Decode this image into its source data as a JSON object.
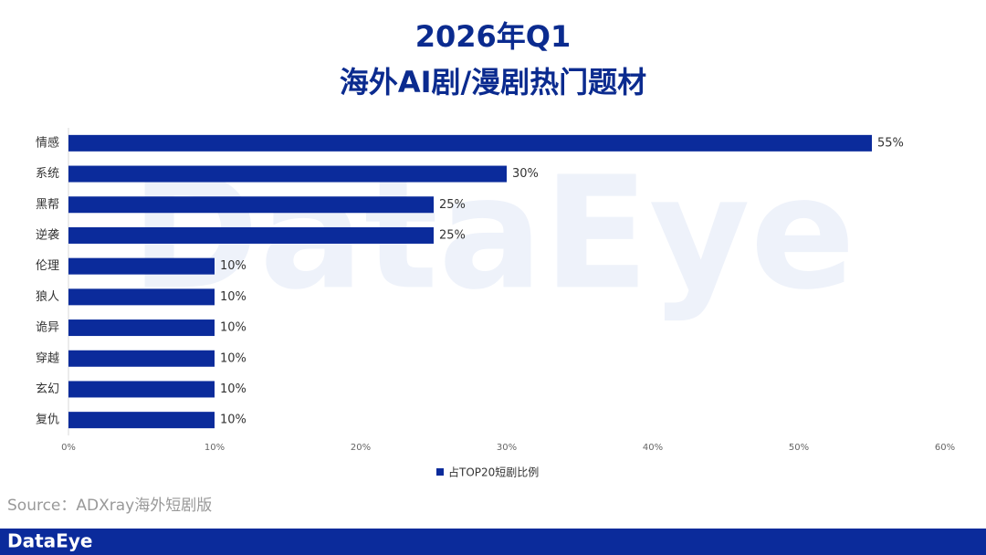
{
  "chart_data": {
    "type": "bar",
    "orientation": "horizontal",
    "title": [
      "2026年Q1",
      "海外AI剧/漫剧热门题材"
    ],
    "categories": [
      "情感",
      "系统",
      "黑帮",
      "逆袭",
      "伦理",
      "狼人",
      "诡异",
      "穿越",
      "玄幻",
      "复仇"
    ],
    "series": [
      {
        "name": "占TOP20短剧比例",
        "color": "#0b2b9b",
        "values": [
          55,
          30,
          25,
          25,
          10,
          10,
          10,
          10,
          10,
          10
        ],
        "value_labels": [
          "55%",
          "30%",
          "25%",
          "25%",
          "10%",
          "10%",
          "10%",
          "10%",
          "10%",
          "10%"
        ]
      }
    ],
    "xlim": [
      0,
      60
    ],
    "xticks": [
      {
        "value": 0,
        "label": "0%"
      },
      {
        "value": 10,
        "label": "10%"
      },
      {
        "value": 20,
        "label": "20%"
      },
      {
        "value": 30,
        "label": "30%"
      },
      {
        "value": 40,
        "label": "40%"
      },
      {
        "value": 50,
        "label": "50%"
      },
      {
        "value": 60,
        "label": "60%"
      }
    ],
    "legend": "bottom",
    "source": "Source：ADXray海外短剧版",
    "watermark": "DataEye",
    "footer_logo": "DataEye"
  }
}
